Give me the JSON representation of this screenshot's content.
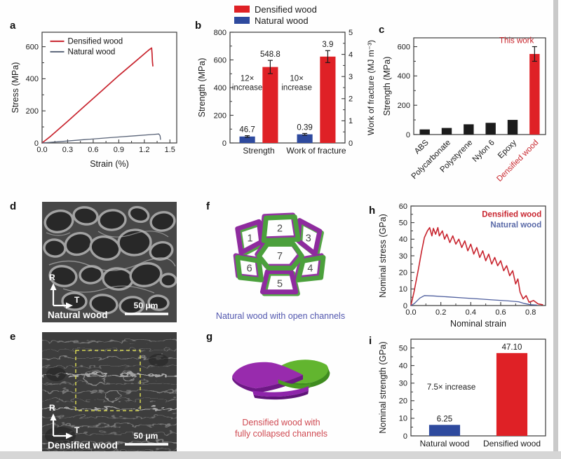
{
  "colors": {
    "densified_red": "#df2126",
    "natural_blue": "#2e4a9e",
    "natural_line_gray": "#5a6478",
    "natural_line_h": "#4f5f9e",
    "black_bar": "#1c1c1c",
    "this_work_red": "#c8252c",
    "caption_f_blue": "#5156ae",
    "caption_g_red": "#cf4a52",
    "purple": "#8e2b9e",
    "green": "#4ba03c",
    "sem_scalebar_white": "#ffffff",
    "dashed_box_yellow": "#d6d655"
  },
  "legend": {
    "items": [
      {
        "label": "Densified wood",
        "color": "#df2126"
      },
      {
        "label": "Natural wood",
        "color": "#2e4a9e"
      }
    ]
  },
  "panels": {
    "a": {
      "label": "a"
    },
    "b": {
      "label": "b"
    },
    "c": {
      "label": "c"
    },
    "d": {
      "label": "d"
    },
    "e": {
      "label": "e"
    },
    "f": {
      "label": "f"
    },
    "g": {
      "label": "g"
    },
    "h": {
      "label": "h"
    },
    "i": {
      "label": "i"
    }
  },
  "sem": {
    "d": {
      "axis_vertical": "R",
      "axis_horizontal": "T",
      "label": "Natural wood",
      "scale_bar": "50 μm"
    },
    "e": {
      "axis_vertical": "R",
      "axis_horizontal": "T",
      "label": "Densified wood",
      "scale_bar": "50 μm"
    }
  },
  "diagrams": {
    "f": {
      "cells": [
        "1",
        "2",
        "3",
        "4",
        "5",
        "6",
        "7"
      ],
      "caption": "Natural wood with open channels"
    },
    "g": {
      "caption_line1": "Densified wood with",
      "caption_line2": "fully collapsed channels"
    }
  },
  "chart_data": [
    {
      "panel": "a",
      "type": "line",
      "title": "",
      "xlabel": "Strain (%)",
      "ylabel": "Stress (MPa)",
      "xlim": [
        0,
        1.58
      ],
      "ylim": [
        0,
        690
      ],
      "xticks": [
        {
          "v": 0,
          "t": "0.0"
        },
        {
          "v": 0.3,
          "t": "0.3"
        },
        {
          "v": 0.6,
          "t": "0.6"
        },
        {
          "v": 0.9,
          "t": "0.9"
        },
        {
          "v": 1.2,
          "t": "1.2"
        },
        {
          "v": 1.5,
          "t": "1.5"
        }
      ],
      "yticks": [
        {
          "v": 0,
          "t": "0"
        },
        {
          "v": 200,
          "t": "200"
        },
        {
          "v": 400,
          "t": "400"
        },
        {
          "v": 600,
          "t": "600"
        }
      ],
      "series": [
        {
          "name": "Densified wood",
          "color": "#c8242e",
          "width": 1.7,
          "points": [
            [
              0,
              0
            ],
            [
              0.1,
              42
            ],
            [
              0.3,
              135
            ],
            [
              0.5,
              230
            ],
            [
              0.7,
              325
            ],
            [
              0.9,
              420
            ],
            [
              1.1,
              510
            ],
            [
              1.25,
              578
            ],
            [
              1.285,
              592
            ],
            [
              1.29,
              560
            ],
            [
              1.295,
              505
            ],
            [
              1.3,
              480
            ]
          ]
        },
        {
          "name": "Natural wood",
          "color": "#5a6478",
          "width": 1.3,
          "points": [
            [
              0,
              0
            ],
            [
              0.2,
              8
            ],
            [
              0.5,
              21
            ],
            [
              0.8,
              33
            ],
            [
              1.1,
              45
            ],
            [
              1.3,
              53
            ],
            [
              1.37,
              56
            ],
            [
              1.385,
              45
            ],
            [
              1.39,
              22
            ]
          ]
        }
      ],
      "legend": {
        "type": "line",
        "x": 0.06,
        "y": 0.04,
        "items": [
          {
            "label": "Densified wood",
            "color": "#c8242e"
          },
          {
            "label": "Natural wood",
            "color": "#5a6478"
          }
        ]
      }
    },
    {
      "panel": "b",
      "type": "bar",
      "title": "",
      "ylabel": "Strength (MPa)",
      "y2label": "Work of fracture (MJ m⁻³)",
      "ylim": [
        0,
        800
      ],
      "yticks": [
        {
          "v": 0,
          "t": "0"
        },
        {
          "v": 200,
          "t": "200"
        },
        {
          "v": 400,
          "t": "400"
        },
        {
          "v": 600,
          "t": "600"
        },
        {
          "v": 800,
          "t": "800"
        }
      ],
      "y2lim": [
        0,
        5
      ],
      "y2ticks": [
        {
          "v": 0,
          "t": "0"
        },
        {
          "v": 1,
          "t": "1"
        },
        {
          "v": 2,
          "t": "2"
        },
        {
          "v": 3,
          "t": "3"
        },
        {
          "v": 4,
          "t": "4"
        },
        {
          "v": 5,
          "t": "5"
        }
      ],
      "groups": [
        {
          "label": "Strength",
          "axis": "y1",
          "bars": [
            {
              "name": "Natural wood",
              "value": 46.7,
              "value_label": "46.7",
              "color": "#2e4a9e",
              "err": 6
            },
            {
              "name": "Densified wood",
              "value": 548.8,
              "value_label": "548.8",
              "color": "#df2126",
              "err": 48
            }
          ]
        },
        {
          "label": "Work of fracture",
          "axis": "y2",
          "bars": [
            {
              "name": "Natural wood",
              "value": 0.39,
              "value_label": "0.39",
              "color": "#2e4a9e",
              "err": 0.04
            },
            {
              "name": "Densified wood",
              "value": 3.9,
              "value_label": "3.9",
              "color": "#df2126",
              "err": 0.27
            }
          ]
        }
      ],
      "annotations": [
        {
          "text": "12×\nincrease",
          "x": 0.15,
          "y": 0.44
        },
        {
          "text": "10×\nincrease",
          "x": 0.58,
          "y": 0.44
        }
      ]
    },
    {
      "panel": "c",
      "type": "bar",
      "title": "",
      "ylabel": "Strength (MPa)",
      "ylim": [
        0,
        660
      ],
      "yticks": [
        {
          "v": 0,
          "t": "0"
        },
        {
          "v": 200,
          "t": "200"
        },
        {
          "v": 400,
          "t": "400"
        },
        {
          "v": 600,
          "t": "600"
        }
      ],
      "xlabel_rotate": 45,
      "groups": [
        {
          "label": "ABS",
          "axis": "y1",
          "bars": [
            {
              "name": "ABS",
              "value": 35,
              "color": "#1c1c1c"
            }
          ]
        },
        {
          "label": "Polycarbonate",
          "axis": "y1",
          "bars": [
            {
              "name": "Polycarbonate",
              "value": 45,
              "color": "#1c1c1c"
            }
          ]
        },
        {
          "label": "Polystyrene",
          "axis": "y1",
          "bars": [
            {
              "name": "Polystyrene",
              "value": 70,
              "color": "#1c1c1c"
            }
          ]
        },
        {
          "label": "Nylon 6",
          "axis": "y1",
          "bars": [
            {
              "name": "Nylon 6",
              "value": 80,
              "color": "#1c1c1c"
            }
          ]
        },
        {
          "label": "Epoxy",
          "axis": "y1",
          "bars": [
            {
              "name": "Epoxy",
              "value": 100,
              "color": "#1c1c1c"
            }
          ]
        },
        {
          "label": "Densified wood",
          "label_color": "#c8252c",
          "axis": "y1",
          "bars": [
            {
              "name": "Densified wood",
              "value": 550,
              "color": "#df2126",
              "err": 50
            }
          ]
        }
      ],
      "annotations": [
        {
          "text": "This work",
          "x": 0.78,
          "y": 0.055,
          "color": "#c8252c"
        }
      ]
    },
    {
      "panel": "h",
      "type": "line",
      "title": "",
      "xlabel": "Nominal strain",
      "ylabel": "Nominal stress (GPa)",
      "xlim": [
        0,
        0.9
      ],
      "ylim": [
        0,
        60
      ],
      "xticks": [
        {
          "v": 0,
          "t": "0.0"
        },
        {
          "v": 0.2,
          "t": "0.2"
        },
        {
          "v": 0.4,
          "t": "0.4"
        },
        {
          "v": 0.6,
          "t": "0.6"
        },
        {
          "v": 0.8,
          "t": "0.8"
        }
      ],
      "yticks": [
        {
          "v": 0,
          "t": "0"
        },
        {
          "v": 10,
          "t": "10"
        },
        {
          "v": 20,
          "t": "20"
        },
        {
          "v": 30,
          "t": "30"
        },
        {
          "v": 40,
          "t": "40"
        },
        {
          "v": 50,
          "t": "50"
        },
        {
          "v": 60,
          "t": "60"
        }
      ],
      "series": [
        {
          "name": "Densified wood",
          "color": "#c8242e",
          "width": 1.6,
          "points": [
            [
              0,
              0
            ],
            [
              0.02,
              8
            ],
            [
              0.05,
              22
            ],
            [
              0.07,
              32
            ],
            [
              0.09,
              41
            ],
            [
              0.11,
              45
            ],
            [
              0.125,
              47
            ],
            [
              0.14,
              42
            ],
            [
              0.15,
              46.5
            ],
            [
              0.165,
              43
            ],
            [
              0.18,
              47
            ],
            [
              0.19,
              42
            ],
            [
              0.21,
              45
            ],
            [
              0.225,
              40
            ],
            [
              0.24,
              43
            ],
            [
              0.26,
              38
            ],
            [
              0.28,
              42
            ],
            [
              0.3,
              37
            ],
            [
              0.32,
              40
            ],
            [
              0.34,
              35
            ],
            [
              0.36,
              39
            ],
            [
              0.38,
              33
            ],
            [
              0.4,
              37
            ],
            [
              0.42,
              31
            ],
            [
              0.44,
              35
            ],
            [
              0.46,
              29
            ],
            [
              0.48,
              33
            ],
            [
              0.5,
              27
            ],
            [
              0.52,
              31
            ],
            [
              0.54,
              25
            ],
            [
              0.56,
              29
            ],
            [
              0.58,
              24
            ],
            [
              0.6,
              27
            ],
            [
              0.62,
              21
            ],
            [
              0.64,
              24
            ],
            [
              0.66,
              18
            ],
            [
              0.68,
              21
            ],
            [
              0.7,
              13
            ],
            [
              0.715,
              16
            ],
            [
              0.73,
              8
            ],
            [
              0.75,
              4
            ],
            [
              0.77,
              6
            ],
            [
              0.79,
              2
            ],
            [
              0.82,
              3
            ],
            [
              0.85,
              1
            ],
            [
              0.88,
              0.5
            ]
          ]
        },
        {
          "name": "Natural wood",
          "color": "#4f5f9e",
          "width": 1.3,
          "points": [
            [
              0,
              0
            ],
            [
              0.02,
              1
            ],
            [
              0.06,
              4.5
            ],
            [
              0.09,
              6
            ],
            [
              0.15,
              5.8
            ],
            [
              0.25,
              5.2
            ],
            [
              0.35,
              4.6
            ],
            [
              0.45,
              4.0
            ],
            [
              0.55,
              3.4
            ],
            [
              0.65,
              2.8
            ],
            [
              0.72,
              2.3
            ],
            [
              0.76,
              1.2
            ],
            [
              0.8,
              0.5
            ],
            [
              0.84,
              0.3
            ]
          ]
        }
      ],
      "legend": {
        "type": "text",
        "x": 0.97,
        "y": 0.04,
        "items": [
          {
            "label": "Densified wood",
            "color": "#c8242e"
          },
          {
            "label": "Natural wood",
            "color": "#5a6aa8"
          }
        ]
      }
    },
    {
      "panel": "i",
      "type": "bar",
      "title": "",
      "ylabel": "Nominal strength (GPa)",
      "ylim": [
        0,
        55
      ],
      "yticks": [
        {
          "v": 0,
          "t": "0"
        },
        {
          "v": 10,
          "t": "10"
        },
        {
          "v": 20,
          "t": "20"
        },
        {
          "v": 30,
          "t": "30"
        },
        {
          "v": 40,
          "t": "40"
        },
        {
          "v": 50,
          "t": "50"
        }
      ],
      "groups": [
        {
          "label": "Natural wood",
          "axis": "y1",
          "bars": [
            {
              "name": "Natural wood",
              "value": 6.25,
              "value_label": "6.25",
              "color": "#2e4a9e"
            }
          ]
        },
        {
          "label": "Densified wood",
          "axis": "y1",
          "bars": [
            {
              "name": "Densified wood",
              "value": 47.1,
              "value_label": "47.10",
              "color": "#df2126"
            }
          ]
        }
      ],
      "annotations": [
        {
          "text": "7.5× increase",
          "x": 0.3,
          "y": 0.52
        }
      ]
    }
  ]
}
